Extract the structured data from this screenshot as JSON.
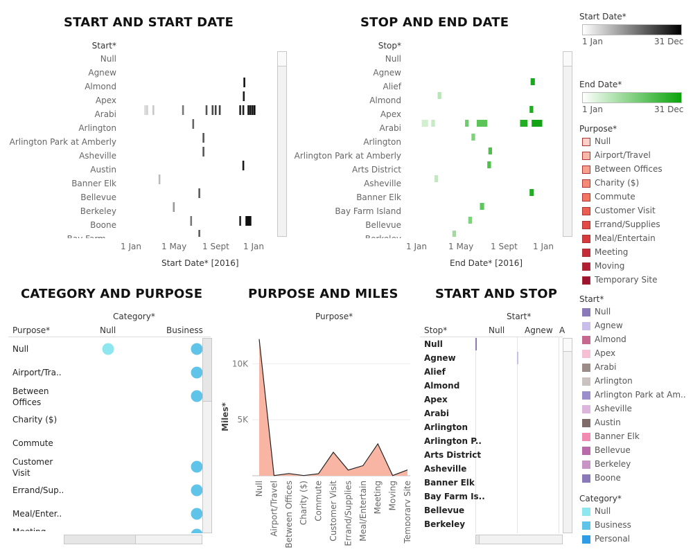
{
  "sheets": {
    "start_date": {
      "title": "START AND START DATE",
      "row_header": "Start*",
      "axis_title": "Start Date* [2016]"
    },
    "stop_date": {
      "title": "STOP AND END DATE",
      "row_header": "Stop*",
      "axis_title": "End Date* [2016]"
    },
    "category_purpose": {
      "title": "CATEGORY AND PURPOSE",
      "col_group": "Category*",
      "row_header": "Purpose*",
      "columns": [
        "Null",
        "Business"
      ]
    },
    "purpose_miles": {
      "title": "PURPOSE AND MILES",
      "col_group": "Purpose*",
      "y_axis_title": "Miles*"
    },
    "start_stop": {
      "title": "START AND STOP",
      "col_group": "Start*",
      "row_header": "Stop*",
      "columns": [
        "Null",
        "Agnew",
        "A"
      ]
    }
  },
  "date_ticks": [
    "1 Jan",
    "1 May",
    "1 Sept",
    "1 Jan"
  ],
  "start_rows": [
    "Null",
    "Agnew",
    "Almond",
    "Apex",
    "Arabi",
    "Arlington",
    "Arlington Park at Amberly",
    "Asheville",
    "Austin",
    "Banner Elk",
    "Bellevue",
    "Berkeley",
    "Boone",
    "Bay Farm ..."
  ],
  "stop_rows": [
    "Null",
    "Agnew",
    "Alief",
    "Almond",
    "Apex",
    "Arabi",
    "Arlington",
    "Arlington Park at Amberly",
    "Arts District",
    "Asheville",
    "Banner Elk",
    "Bay Farm Island",
    "Bellevue",
    "Berkeley"
  ],
  "start_date_marks": [
    {
      "row": 1,
      "month": 11.0,
      "color": "#111111"
    },
    {
      "row": 2,
      "month": 10.95,
      "color": "#1a1a1a"
    },
    {
      "row": 3,
      "month": 1.3,
      "color": "#d8d8d8"
    },
    {
      "row": 3,
      "month": 1.5,
      "color": "#d0d0d0"
    },
    {
      "row": 3,
      "month": 2.1,
      "color": "#c8c8c8"
    },
    {
      "row": 3,
      "month": 5.0,
      "color": "#777777"
    },
    {
      "row": 3,
      "month": 7.3,
      "color": "#555555"
    },
    {
      "row": 3,
      "month": 7.9,
      "color": "#4a4a4a"
    },
    {
      "row": 3,
      "month": 8.2,
      "color": "#444444"
    },
    {
      "row": 3,
      "month": 8.6,
      "color": "#404040"
    },
    {
      "row": 3,
      "month": 10.6,
      "color": "#222222"
    },
    {
      "row": 3,
      "month": 10.9,
      "color": "#222222"
    },
    {
      "row": 3,
      "month": 11.4,
      "color": "#111111"
    },
    {
      "row": 3,
      "month": 11.6,
      "color": "#111111"
    },
    {
      "row": 3,
      "month": 11.8,
      "color": "#111111"
    },
    {
      "row": 3,
      "month": 12.0,
      "color": "#111111"
    },
    {
      "row": 4,
      "month": 6.0,
      "color": "#666666"
    },
    {
      "row": 5,
      "month": 7.0,
      "color": "#555555"
    },
    {
      "row": 6,
      "month": 7.0,
      "color": "#555555"
    },
    {
      "row": 7,
      "month": 10.9,
      "color": "#1a1a1a"
    },
    {
      "row": 8,
      "month": 2.7,
      "color": "#bbbbbb"
    },
    {
      "row": 9,
      "month": 6.6,
      "color": "#5a5a5a"
    },
    {
      "row": 10,
      "month": 4.1,
      "color": "#999999"
    },
    {
      "row": 11,
      "month": 5.8,
      "color": "#777777"
    },
    {
      "row": 11,
      "month": 10.6,
      "color": "#222222"
    },
    {
      "row": 11,
      "month": 11.2,
      "color": "#111111"
    },
    {
      "row": 11,
      "month": 11.3,
      "color": "#111111"
    },
    {
      "row": 12,
      "month": 6.6,
      "color": "#5a5a5a"
    }
  ],
  "stop_date_marks": [
    {
      "row": 1,
      "month": 10.8,
      "w": 0.4,
      "color": "#19a81f"
    },
    {
      "row": 2,
      "month": 2.0,
      "w": 0.35,
      "color": "#b8e6b6"
    },
    {
      "row": 3,
      "month": 10.7,
      "w": 0.35,
      "color": "#1fae22"
    },
    {
      "row": 4,
      "month": 0.5,
      "w": 0.6,
      "color": "#d2efd0"
    },
    {
      "row": 4,
      "month": 1.4,
      "w": 0.35,
      "color": "#c6ebc3"
    },
    {
      "row": 4,
      "month": 4.6,
      "w": 0.35,
      "color": "#6fcc6c"
    },
    {
      "row": 4,
      "month": 5.7,
      "w": 1.0,
      "color": "#5cc459"
    },
    {
      "row": 4,
      "month": 9.8,
      "w": 0.7,
      "color": "#22ad23"
    },
    {
      "row": 4,
      "month": 10.9,
      "w": 1.0,
      "color": "#12a415"
    },
    {
      "row": 5,
      "month": 5.2,
      "w": 0.35,
      "color": "#7dd27a"
    },
    {
      "row": 6,
      "month": 6.8,
      "w": 0.35,
      "color": "#4ec04b"
    },
    {
      "row": 7,
      "month": 6.7,
      "w": 0.35,
      "color": "#4ec04b"
    },
    {
      "row": 8,
      "month": 1.7,
      "w": 0.35,
      "color": "#c1e9be"
    },
    {
      "row": 9,
      "month": 10.7,
      "w": 0.4,
      "color": "#1fae22"
    },
    {
      "row": 10,
      "month": 6.0,
      "w": 0.4,
      "color": "#5ec75b"
    },
    {
      "row": 11,
      "month": 4.9,
      "w": 0.35,
      "color": "#80d37d"
    },
    {
      "row": 12,
      "month": 3.4,
      "w": 0.35,
      "color": "#a0dd9d"
    }
  ],
  "purposes": [
    "Null",
    "Airport/Tra..",
    "Between Offices",
    "Charity ($)",
    "Commute",
    "Customer Visit",
    "Errand/Sup..",
    "Meal/Enter..",
    "Meeting"
  ],
  "category_marks": [
    {
      "row": 0,
      "col": 0,
      "color": "#8ee6ef"
    },
    {
      "row": 0,
      "col": 1,
      "color": "#5fc4e8"
    },
    {
      "row": 1,
      "col": 1,
      "color": "#5fc4e8"
    },
    {
      "row": 2,
      "col": 1,
      "color": "#5fc4e8"
    },
    {
      "row": 5,
      "col": 1,
      "color": "#5fc4e8"
    },
    {
      "row": 6,
      "col": 1,
      "color": "#5fc4e8"
    },
    {
      "row": 7,
      "col": 1,
      "color": "#5fc4e8"
    },
    {
      "row": 8,
      "col": 1,
      "color": "#5fc4e8"
    }
  ],
  "chart_data": {
    "type": "area",
    "title": "PURPOSE AND MILES",
    "xlabel": "Purpose*",
    "ylabel": "Miles*",
    "categories": [
      "Null",
      "Airport/Travel",
      "Between Offices",
      "Charity ($)",
      "Commute",
      "Customer Visit",
      "Errand/Supplies",
      "Meal/Entertain",
      "Meeting",
      "Moving",
      "Temporary Site"
    ],
    "values": [
      12200,
      20,
      200,
      20,
      180,
      2100,
      510,
      900,
      2850,
      20,
      520
    ],
    "y_ticks": [
      "5K",
      "10K"
    ],
    "ylim": [
      0,
      12800
    ],
    "grid": true,
    "fill_color": "#f9b5a3"
  },
  "start_stop_rows": [
    "Null",
    "Agnew",
    "Alief",
    "Almond",
    "Apex",
    "Arabi",
    "Arlington",
    "Arlington P..",
    "Arts District",
    "Asheville",
    "Banner Elk",
    "Bay Farm Is..",
    "Bellevue",
    "Berkeley"
  ],
  "legends": {
    "start_date": {
      "title": "Start Date*",
      "min": "1 Jan",
      "max": "31 Dec",
      "from": "#ffffff",
      "to": "#000000"
    },
    "end_date": {
      "title": "End Date*",
      "min": "1 Jan",
      "max": "31 Dec",
      "from": "#ffffff",
      "to": "#0aa30a"
    },
    "purpose": {
      "title": "Purpose*",
      "items": [
        {
          "label": "Null",
          "color": "#fbd0c6"
        },
        {
          "label": "Airport/Travel",
          "color": "#f9b8a8"
        },
        {
          "label": "Between Offices",
          "color": "#f6a08e"
        },
        {
          "label": "Charity ($)",
          "color": "#f38b78"
        },
        {
          "label": "Commute",
          "color": "#f07663"
        },
        {
          "label": "Customer Visit",
          "color": "#ea5f52"
        },
        {
          "label": "Errand/Supplies",
          "color": "#e24a45"
        },
        {
          "label": "Meal/Entertain",
          "color": "#d63a3d"
        },
        {
          "label": "Meeting",
          "color": "#c52c39"
        },
        {
          "label": "Moving",
          "color": "#b11f35"
        },
        {
          "label": "Temporary Site",
          "color": "#9c1332"
        }
      ]
    },
    "start": {
      "title": "Start*",
      "items": [
        {
          "label": "Null",
          "color": "#8a7ab8"
        },
        {
          "label": "Agnew",
          "color": "#c9bdea"
        },
        {
          "label": "Almond",
          "color": "#c56a8e"
        },
        {
          "label": "Apex",
          "color": "#f5bfd4"
        },
        {
          "label": "Arabi",
          "color": "#9b8c88"
        },
        {
          "label": "Arlington",
          "color": "#c9c2bf"
        },
        {
          "label": "Arlington Park at Am..",
          "color": "#9c8dcb"
        },
        {
          "label": "Asheville",
          "color": "#dcb6dc"
        },
        {
          "label": "Austin",
          "color": "#7e6c6a"
        },
        {
          "label": "Banner Elk",
          "color": "#f08ab0"
        },
        {
          "label": "Bellevue",
          "color": "#b96aa8"
        },
        {
          "label": "Berkeley",
          "color": "#c894c6"
        },
        {
          "label": "Boone",
          "color": "#8a7ab8"
        }
      ]
    },
    "category": {
      "title": "Category*",
      "items": [
        {
          "label": "Null",
          "color": "#8ee6ef"
        },
        {
          "label": "Business",
          "color": "#5fc4e8"
        },
        {
          "label": "Personal",
          "color": "#2f9ce6"
        }
      ]
    }
  }
}
